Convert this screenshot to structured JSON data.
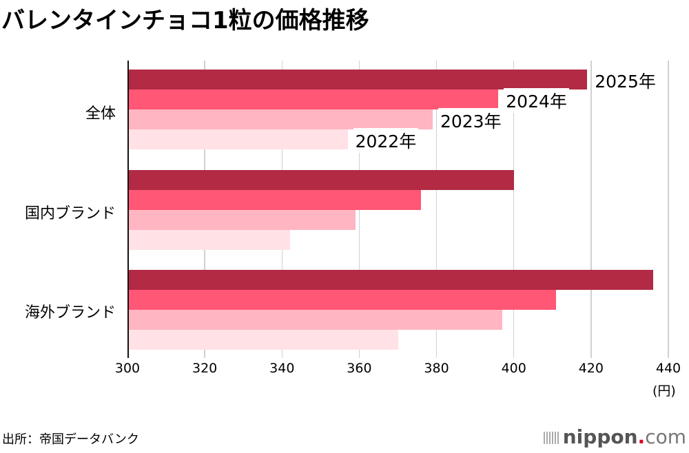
{
  "title": "バレンタインチョコ1粒の価格推移",
  "source": "出所：帝国データバンク",
  "logo": {
    "main": "nippon",
    "dot": ".",
    "suffix": "com"
  },
  "colors": {
    "2025": "#b22a44",
    "2024": "#ff5775",
    "2023": "#ffb5c2",
    "2022": "#ffe1e6"
  },
  "chart_data": {
    "type": "bar",
    "orientation": "horizontal",
    "title": "バレンタインチョコ1粒の価格推移",
    "categories": [
      "全体",
      "国内ブランド",
      "海外ブランド"
    ],
    "series": [
      {
        "name": "2025年",
        "values": [
          419,
          400,
          436
        ]
      },
      {
        "name": "2024年",
        "values": [
          396,
          376,
          411
        ]
      },
      {
        "name": "2023年",
        "values": [
          379,
          359,
          397
        ]
      },
      {
        "name": "2022年",
        "values": [
          357,
          342,
          370
        ]
      }
    ],
    "xlabel": "(円)",
    "ylabel": "",
    "xlim": [
      300,
      440
    ],
    "xticks": [
      300,
      320,
      340,
      360,
      380,
      400,
      420,
      440
    ],
    "grid": "vertical",
    "legend": "direct labels on 全体 bars"
  }
}
